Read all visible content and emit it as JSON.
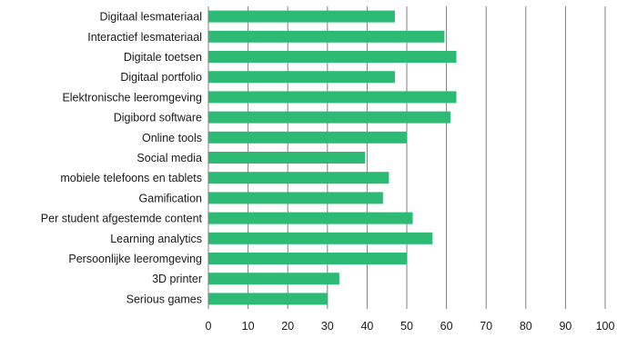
{
  "chart_data": {
    "type": "bar",
    "orientation": "horizontal",
    "categories": [
      "Digitaal lesmateriaal",
      "Interactief lesmateriaal",
      "Digitale toetsen",
      "Digitaal portfolio",
      "Elektronische leeromgeving",
      "Digibord software",
      "Online tools",
      "Social media",
      "mobiele telefoons en tablets",
      "Gamification",
      "Per student afgestemde content",
      "Learning analytics",
      "Persoonlijke leeromgeving",
      "3D printer",
      "Serious games"
    ],
    "values": [
      47,
      59.5,
      62.5,
      47,
      62.5,
      61,
      50,
      39.5,
      45.5,
      44,
      51.5,
      56.5,
      50,
      33,
      30
    ],
    "xlim": [
      0,
      100
    ],
    "xticks": [
      "0",
      "10",
      "20",
      "30",
      "40",
      "50",
      "60",
      "70",
      "80",
      "90",
      "100"
    ],
    "grid": "vertical",
    "bar_color": "#2dba74",
    "legend": "none",
    "title": "",
    "xlabel": "",
    "ylabel": ""
  }
}
